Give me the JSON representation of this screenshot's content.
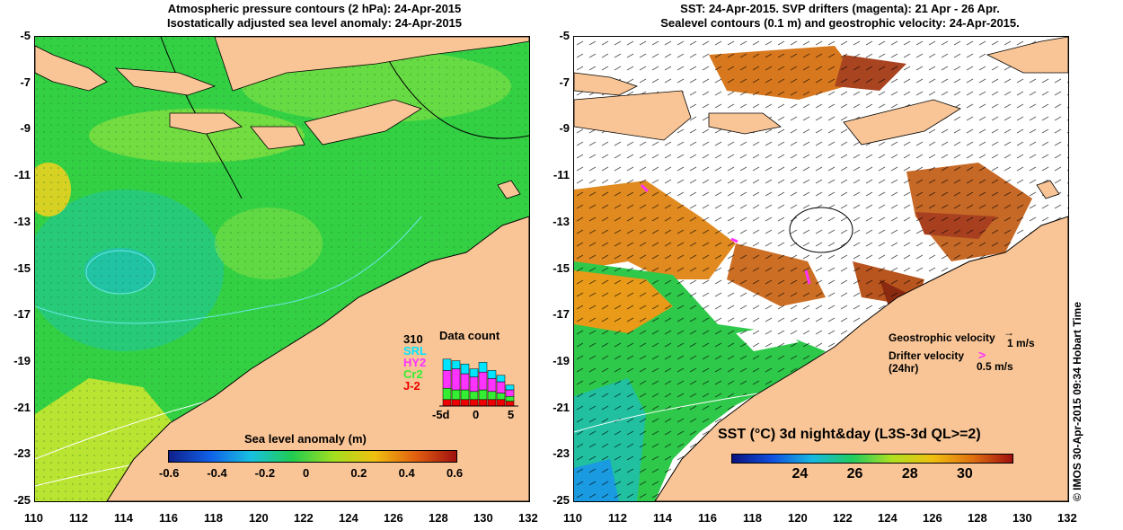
{
  "left_panel": {
    "title_line1": "Atmospheric pressure contours (2 hPa): 24-Apr-2015",
    "title_line2": "Isostatically adjusted sea level anomaly: 24-Apr-2015",
    "colorbar": {
      "label": "Sea level anomaly (m)",
      "ticks": [
        "-0.6",
        "-0.4",
        "-0.2",
        "0",
        "0.2",
        "0.4",
        "0.6"
      ]
    },
    "data_count": {
      "title": "Data count",
      "missions": [
        {
          "name": "310",
          "color": "#000000"
        },
        {
          "name": "SRL",
          "color": "#00e5ff"
        },
        {
          "name": "HY2",
          "color": "#ff33ff"
        },
        {
          "name": "Cr2",
          "color": "#33ee33"
        },
        {
          "name": "J-2",
          "color": "#ee0000"
        }
      ],
      "axis_labels": [
        "-5d",
        "0",
        "5"
      ]
    }
  },
  "right_panel": {
    "title_line1": "SST: 24-Apr-2015. SVP drifters (magenta): 21 Apr - 26 Apr.",
    "title_line2": "Sealevel contours (0.1 m) and geostrophic velocity: 24-Apr-2015.",
    "legend": {
      "geostrophic_label": "Geostrophic velocity",
      "geostrophic_scale": "1 m/s",
      "drifter_label_1": "Drifter velocity",
      "drifter_label_2": "(24hr)",
      "drifter_scale": "0.5 m/s"
    },
    "colorbar": {
      "title": "SST (°C) 3d night&day (L3S-3d QL>=2)",
      "ticks": [
        "24",
        "26",
        "28",
        "30"
      ]
    }
  },
  "axes": {
    "x_ticks": [
      "110",
      "112",
      "114",
      "116",
      "118",
      "120",
      "122",
      "124",
      "126",
      "128",
      "130",
      "132"
    ],
    "y_ticks": [
      "-5",
      "-7",
      "-9",
      "-11",
      "-13",
      "-15",
      "-17",
      "-19",
      "-21",
      "-23",
      "-25"
    ]
  },
  "credit": "© IMOS 30-Apr-2015 09:34 Hobart Time",
  "colors": {
    "land": "#f9c596",
    "sea_green": "#22cc44",
    "sea_light": "#66dd55",
    "sea_yellow": "#cce82a",
    "sea_cyan": "#22c8a0",
    "sst_orange": "#e08020",
    "sst_brown": "#b8541e",
    "sst_dark": "#8a2a10"
  }
}
